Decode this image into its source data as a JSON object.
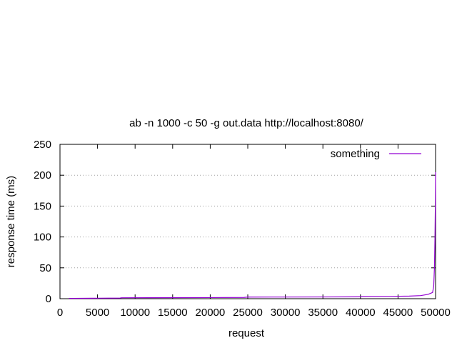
{
  "chart_data": {
    "type": "line",
    "title": "ab -n 1000 -c 50 -g out.data http://localhost:8080/",
    "xlabel": "request",
    "ylabel": "response time (ms)",
    "xlim": [
      0,
      50000
    ],
    "ylim": [
      0,
      250
    ],
    "x_ticks": [
      0,
      5000,
      10000,
      15000,
      20000,
      25000,
      30000,
      35000,
      40000,
      45000,
      50000
    ],
    "y_ticks": [
      0,
      50,
      100,
      150,
      200,
      250
    ],
    "grid": "horizontal dotted",
    "legend": {
      "position": "top-right"
    },
    "series": [
      {
        "name": "something",
        "color": "#9400d3",
        "points": [
          [
            1200,
            0.5
          ],
          [
            5000,
            0.8
          ],
          [
            8000,
            1.0
          ],
          [
            8200,
            1.5
          ],
          [
            12000,
            1.6
          ],
          [
            20000,
            1.8
          ],
          [
            24500,
            2.0
          ],
          [
            25000,
            2.6
          ],
          [
            30000,
            2.7
          ],
          [
            35000,
            2.8
          ],
          [
            40000,
            3.0
          ],
          [
            40200,
            3.5
          ],
          [
            44000,
            3.7
          ],
          [
            46500,
            4.2
          ],
          [
            48000,
            5.0
          ],
          [
            49000,
            7.0
          ],
          [
            49600,
            10.0
          ],
          [
            49750,
            20.0
          ],
          [
            49850,
            50.0
          ],
          [
            49920,
            100.0
          ],
          [
            49970,
            150.0
          ],
          [
            50000,
            205.0
          ]
        ]
      }
    ]
  }
}
